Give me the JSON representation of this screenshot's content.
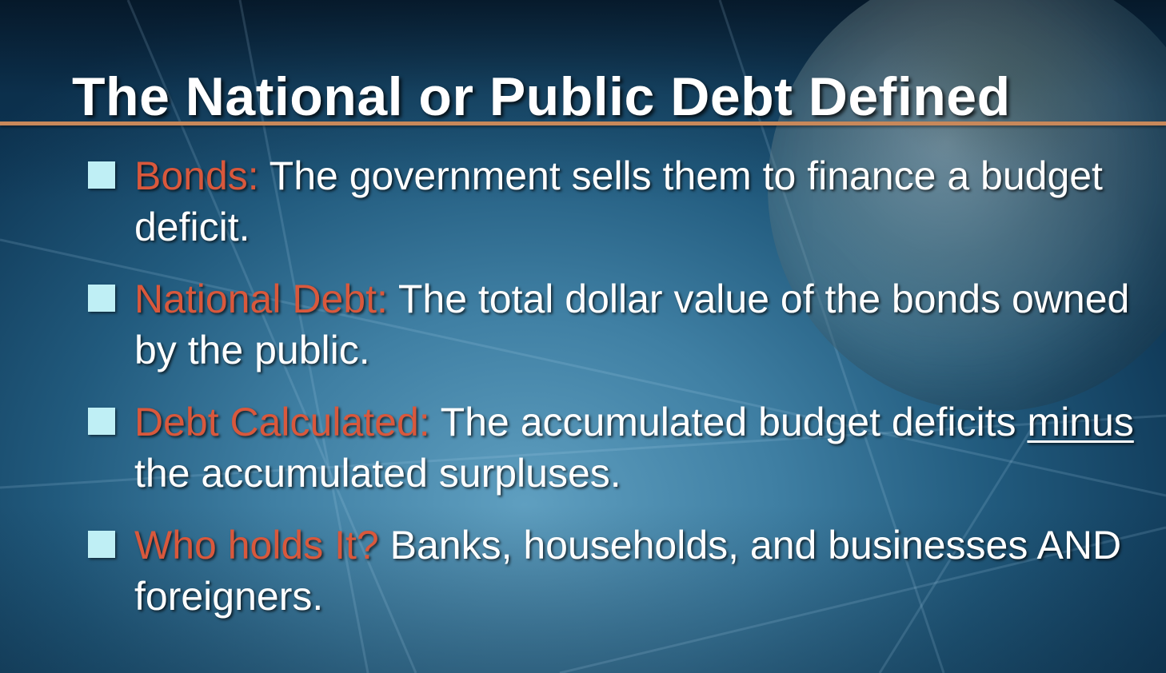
{
  "slide": {
    "title": "The National or Public Debt Defined",
    "bullets": [
      {
        "term": "Bonds:",
        "text": " The government sells them to finance a budget deficit."
      },
      {
        "term": "National Debt:",
        "text": " The total dollar value of the bonds owned by the public."
      },
      {
        "term": "Debt Calculated:",
        "text_before": " The accumulated budget deficits ",
        "underlined": "minus",
        "text_after": " the accumulated surpluses."
      },
      {
        "term": "Who holds It?",
        "text": " Banks, households, and businesses AND foreigners."
      }
    ]
  },
  "colors": {
    "title": "#ffffff",
    "term": "#d9583c",
    "body_text": "#ffffff",
    "bullet_marker": "#bfeff5",
    "rule": "#c8885a"
  }
}
